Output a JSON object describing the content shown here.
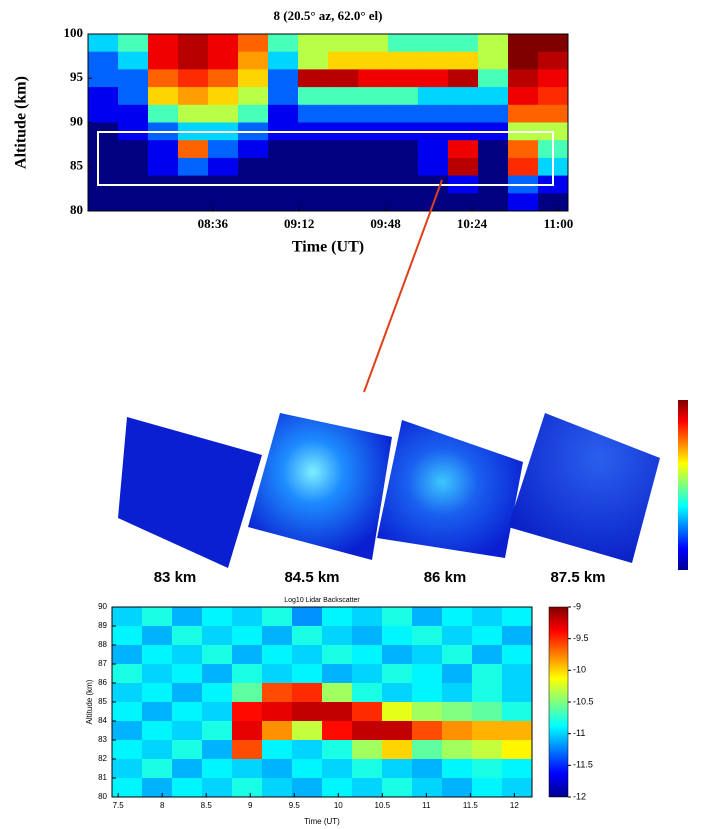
{
  "chart_data": [
    {
      "type": "heatmap",
      "title": "8 (20.5° az, 62.0° el)",
      "xlabel": "Time (UT)",
      "ylabel": "Altitude (km)",
      "xlim": [
        464,
        664
      ],
      "ylim": [
        80,
        100
      ],
      "xticks": [
        {
          "value": 516,
          "label": "08:36"
        },
        {
          "value": 552,
          "label": "09:12"
        },
        {
          "value": 588,
          "label": "09:48"
        },
        {
          "value": 624,
          "label": "10:24"
        },
        {
          "value": 660,
          "label": "11:00"
        }
      ],
      "yticks": [
        80,
        85,
        90,
        95,
        100
      ],
      "z": [
        [
          0.4,
          0.5,
          0.9,
          0.95,
          0.9,
          0.8,
          0.5,
          0.6,
          0.6,
          0.6,
          0.5,
          0.5,
          0.5,
          0.6,
          1,
          1
        ],
        [
          0.3,
          0.4,
          0.9,
          0.95,
          0.9,
          0.75,
          0.4,
          0.6,
          0.7,
          0.7,
          0.7,
          0.7,
          0.7,
          0.6,
          1,
          0.95
        ],
        [
          0.3,
          0.3,
          0.8,
          0.85,
          0.8,
          0.7,
          0.3,
          0.95,
          0.95,
          0.9,
          0.9,
          0.9,
          0.95,
          0.5,
          0.95,
          0.9
        ],
        [
          0.2,
          0.3,
          0.7,
          0.75,
          0.7,
          0.6,
          0.3,
          0.5,
          0.5,
          0.5,
          0.5,
          0.4,
          0.4,
          0.4,
          0.9,
          0.85
        ],
        [
          0.2,
          0.2,
          0.5,
          0.6,
          0.6,
          0.5,
          0.2,
          0.3,
          0.3,
          0.3,
          0.3,
          0.3,
          0.3,
          0.3,
          0.8,
          0.8
        ],
        [
          0.1,
          0.2,
          0.3,
          0.4,
          0.4,
          0.3,
          0.2,
          0.2,
          0.2,
          0.2,
          0.2,
          0.2,
          0.2,
          0.2,
          0.6,
          0.6
        ],
        [
          0.1,
          0.1,
          0.2,
          0.8,
          0.3,
          0.2,
          0.1,
          0.1,
          0.1,
          0.1,
          0.1,
          0.2,
          0.9,
          0.1,
          0.8,
          0.5
        ],
        [
          0.1,
          0.1,
          0.2,
          0.3,
          0.2,
          0.1,
          0.1,
          0.1,
          0.1,
          0.1,
          0.1,
          0.2,
          0.95,
          0.1,
          0.85,
          0.4
        ],
        [
          0.1,
          0.1,
          0.1,
          0.1,
          0.1,
          0.1,
          0.1,
          0.1,
          0.1,
          0.1,
          0.1,
          0.1,
          0.2,
          0.1,
          0.3,
          0.2
        ],
        [
          0.1,
          0.1,
          0.1,
          0.1,
          0.1,
          0.1,
          0.1,
          0.1,
          0.1,
          0.1,
          0.1,
          0.1,
          0.1,
          0.1,
          0.2,
          0.1
        ]
      ]
    },
    {
      "type": "heatmap",
      "title": "Log10 Lidar Backscatter",
      "xlabel": "Time (UT)",
      "ylabel": "Altitude (km)",
      "xlim": [
        7.43,
        12.2
      ],
      "ylim": [
        80,
        90
      ],
      "xticks": [
        7.5,
        8,
        8.5,
        9,
        9.5,
        10,
        10.5,
        11,
        11.5,
        12
      ],
      "yticks": [
        80,
        81,
        82,
        83,
        84,
        85,
        86,
        87,
        88,
        89,
        90
      ],
      "zlim": [
        -12,
        -9
      ],
      "zticks": [
        -9,
        -9.5,
        -10,
        -10.5,
        -11,
        -11.5,
        -12
      ],
      "z": [
        [
          -11,
          -10.8,
          -11.1,
          -10.9,
          -11,
          -10.8,
          -11.2,
          -10.9,
          -11,
          -10.8,
          -11.1,
          -10.9,
          -11,
          -10.9
        ],
        [
          -10.9,
          -11.1,
          -10.8,
          -11,
          -10.9,
          -11.1,
          -10.8,
          -11,
          -11.1,
          -10.9,
          -10.8,
          -11,
          -10.9,
          -11.1
        ],
        [
          -11.1,
          -10.9,
          -11,
          -10.8,
          -11.1,
          -10.9,
          -11,
          -10.8,
          -10.9,
          -11.1,
          -11,
          -10.8,
          -11.1,
          -10.9
        ],
        [
          -10.8,
          -11,
          -10.9,
          -11.1,
          -10.8,
          -11,
          -10.9,
          -11.1,
          -11,
          -10.8,
          -10.9,
          -11.1,
          -10.8,
          -11
        ],
        [
          -11,
          -10.9,
          -11.1,
          -10.9,
          -10.6,
          -9.6,
          -9.5,
          -10.4,
          -10.8,
          -11,
          -10.9,
          -11,
          -10.8,
          -11
        ],
        [
          -10.9,
          -11.1,
          -10.9,
          -11,
          -9.4,
          -9.3,
          -9.2,
          -9.2,
          -9.5,
          -10.2,
          -10.4,
          -10.5,
          -10.6,
          -10.8
        ],
        [
          -11.1,
          -10.9,
          -11,
          -10.8,
          -9.3,
          -9.8,
          -10.3,
          -9.4,
          -9.2,
          -9.2,
          -9.6,
          -9.8,
          -9.9,
          -9.9
        ],
        [
          -10.9,
          -11,
          -10.8,
          -11.1,
          -9.6,
          -10.9,
          -11,
          -10.8,
          -10.4,
          -10,
          -10.6,
          -10.4,
          -10.3,
          -10.1
        ],
        [
          -11,
          -10.8,
          -11.1,
          -10.9,
          -11,
          -11.1,
          -10.9,
          -11,
          -10.8,
          -11,
          -11.1,
          -10.9,
          -10.8,
          -10.9
        ],
        [
          -10.9,
          -11.1,
          -10.9,
          -11,
          -10.8,
          -11,
          -11.1,
          -10.9,
          -11,
          -10.8,
          -11,
          -11.1,
          -10.9,
          -11
        ]
      ]
    }
  ],
  "surface_panel": {
    "labels": [
      "83 km",
      "84.5 km",
      "86 km",
      "87.5 km"
    ]
  }
}
